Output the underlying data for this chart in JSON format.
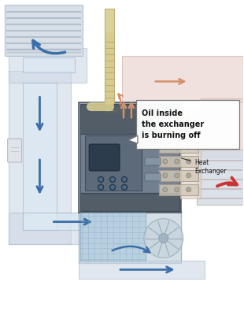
{
  "bg_color": "#ffffff",
  "cold_duct": "#cdd8e5",
  "cold_duct_edge": "#a8bdd0",
  "cold_duct_inner": "#dce8f2",
  "hot_duct": "#e8cec8",
  "hot_duct_edge": "#c8a8a0",
  "arrow_cold": "#3a6fa8",
  "arrow_hot": "#cc3333",
  "arrow_warm": "#d4906a",
  "flue_color": "#d8cc90",
  "flue_edge": "#b8aa70",
  "furnace_dark": "#4a5560",
  "furnace_mid": "#6a7888",
  "furnace_light": "#8898a8",
  "furnace_edge": "#3a4550",
  "hx_color": "#d0c8b8",
  "hx_edge": "#a8988a",
  "filter_color": "#b0cce0",
  "filter_edge": "#88aac0",
  "blower_color": "#c8d4dc",
  "blower_edge": "#90a8b8",
  "vent_color": "#d4dce4",
  "vent_slat": "#a8b8c8",
  "wall_color": "#e0e4e8",
  "note_label": "Heat\nExchanger",
  "callout_text": "Oil inside\nthe exchanger\nis burning off",
  "text_dark": "#111111",
  "label_edge": "#777777"
}
